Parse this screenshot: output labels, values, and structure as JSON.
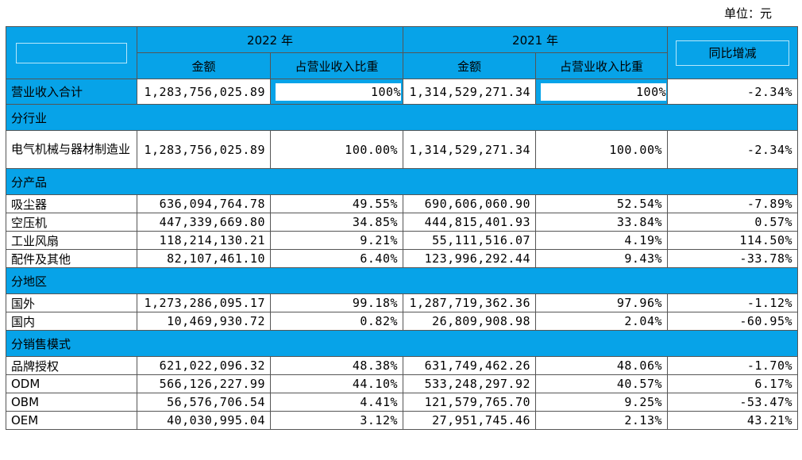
{
  "unit": "单位：元",
  "header": {
    "year_2022": "2022 年",
    "year_2021": "2021 年",
    "amount": "金额",
    "ratio": "占营业收入比重",
    "yoy": "同比增减"
  },
  "total": {
    "label": "营业收入合计",
    "amount_2022": "1,283,756,025.89",
    "ratio_2022": "100%",
    "amount_2021": "1,314,529,271.34",
    "ratio_2021": "100%",
    "yoy": "-2.34%"
  },
  "sections": [
    {
      "title": "分行业",
      "rows": [
        {
          "label": "电气机械与器材制造业",
          "amount_2022": "1,283,756,025.89",
          "ratio_2022": "100.00%",
          "amount_2021": "1,314,529,271.34",
          "ratio_2021": "100.00%",
          "yoy": "-2.34%"
        }
      ]
    },
    {
      "title": "分产品",
      "rows": [
        {
          "label": "吸尘器",
          "amount_2022": "636,094,764.78",
          "ratio_2022": "49.55%",
          "amount_2021": "690,606,060.90",
          "ratio_2021": "52.54%",
          "yoy": "-7.89%"
        },
        {
          "label": "空压机",
          "amount_2022": "447,339,669.80",
          "ratio_2022": "34.85%",
          "amount_2021": "444,815,401.93",
          "ratio_2021": "33.84%",
          "yoy": "0.57%"
        },
        {
          "label": "工业风扇",
          "amount_2022": "118,214,130.21",
          "ratio_2022": "9.21%",
          "amount_2021": "55,111,516.07",
          "ratio_2021": "4.19%",
          "yoy": "114.50%"
        },
        {
          "label": "配件及其他",
          "amount_2022": "82,107,461.10",
          "ratio_2022": "6.40%",
          "amount_2021": "123,996,292.44",
          "ratio_2021": "9.43%",
          "yoy": "-33.78%"
        }
      ]
    },
    {
      "title": "分地区",
      "rows": [
        {
          "label": "国外",
          "amount_2022": "1,273,286,095.17",
          "ratio_2022": "99.18%",
          "amount_2021": "1,287,719,362.36",
          "ratio_2021": "97.96%",
          "yoy": "-1.12%"
        },
        {
          "label": "国内",
          "amount_2022": "10,469,930.72",
          "ratio_2022": "0.82%",
          "amount_2021": "26,809,908.98",
          "ratio_2021": "2.04%",
          "yoy": "-60.95%"
        }
      ]
    },
    {
      "title": "分销售模式",
      "rows": [
        {
          "label": "品牌授权",
          "amount_2022": "621,022,096.32",
          "ratio_2022": "48.38%",
          "amount_2021": "631,749,462.26",
          "ratio_2021": "48.06%",
          "yoy": "-1.70%"
        },
        {
          "label": "ODM",
          "amount_2022": "566,126,227.99",
          "ratio_2022": "44.10%",
          "amount_2021": "533,248,297.92",
          "ratio_2021": "40.57%",
          "yoy": "6.17%"
        },
        {
          "label": "OBM",
          "amount_2022": "56,576,706.54",
          "ratio_2022": "4.41%",
          "amount_2021": "121,579,765.70",
          "ratio_2021": "9.25%",
          "yoy": "-53.47%"
        },
        {
          "label": "OEM",
          "amount_2022": "40,030,995.04",
          "ratio_2022": "3.12%",
          "amount_2021": "27,951,745.46",
          "ratio_2021": "2.13%",
          "yoy": "43.21%"
        }
      ]
    }
  ],
  "colors": {
    "header_bg": "#07a3e8"
  }
}
